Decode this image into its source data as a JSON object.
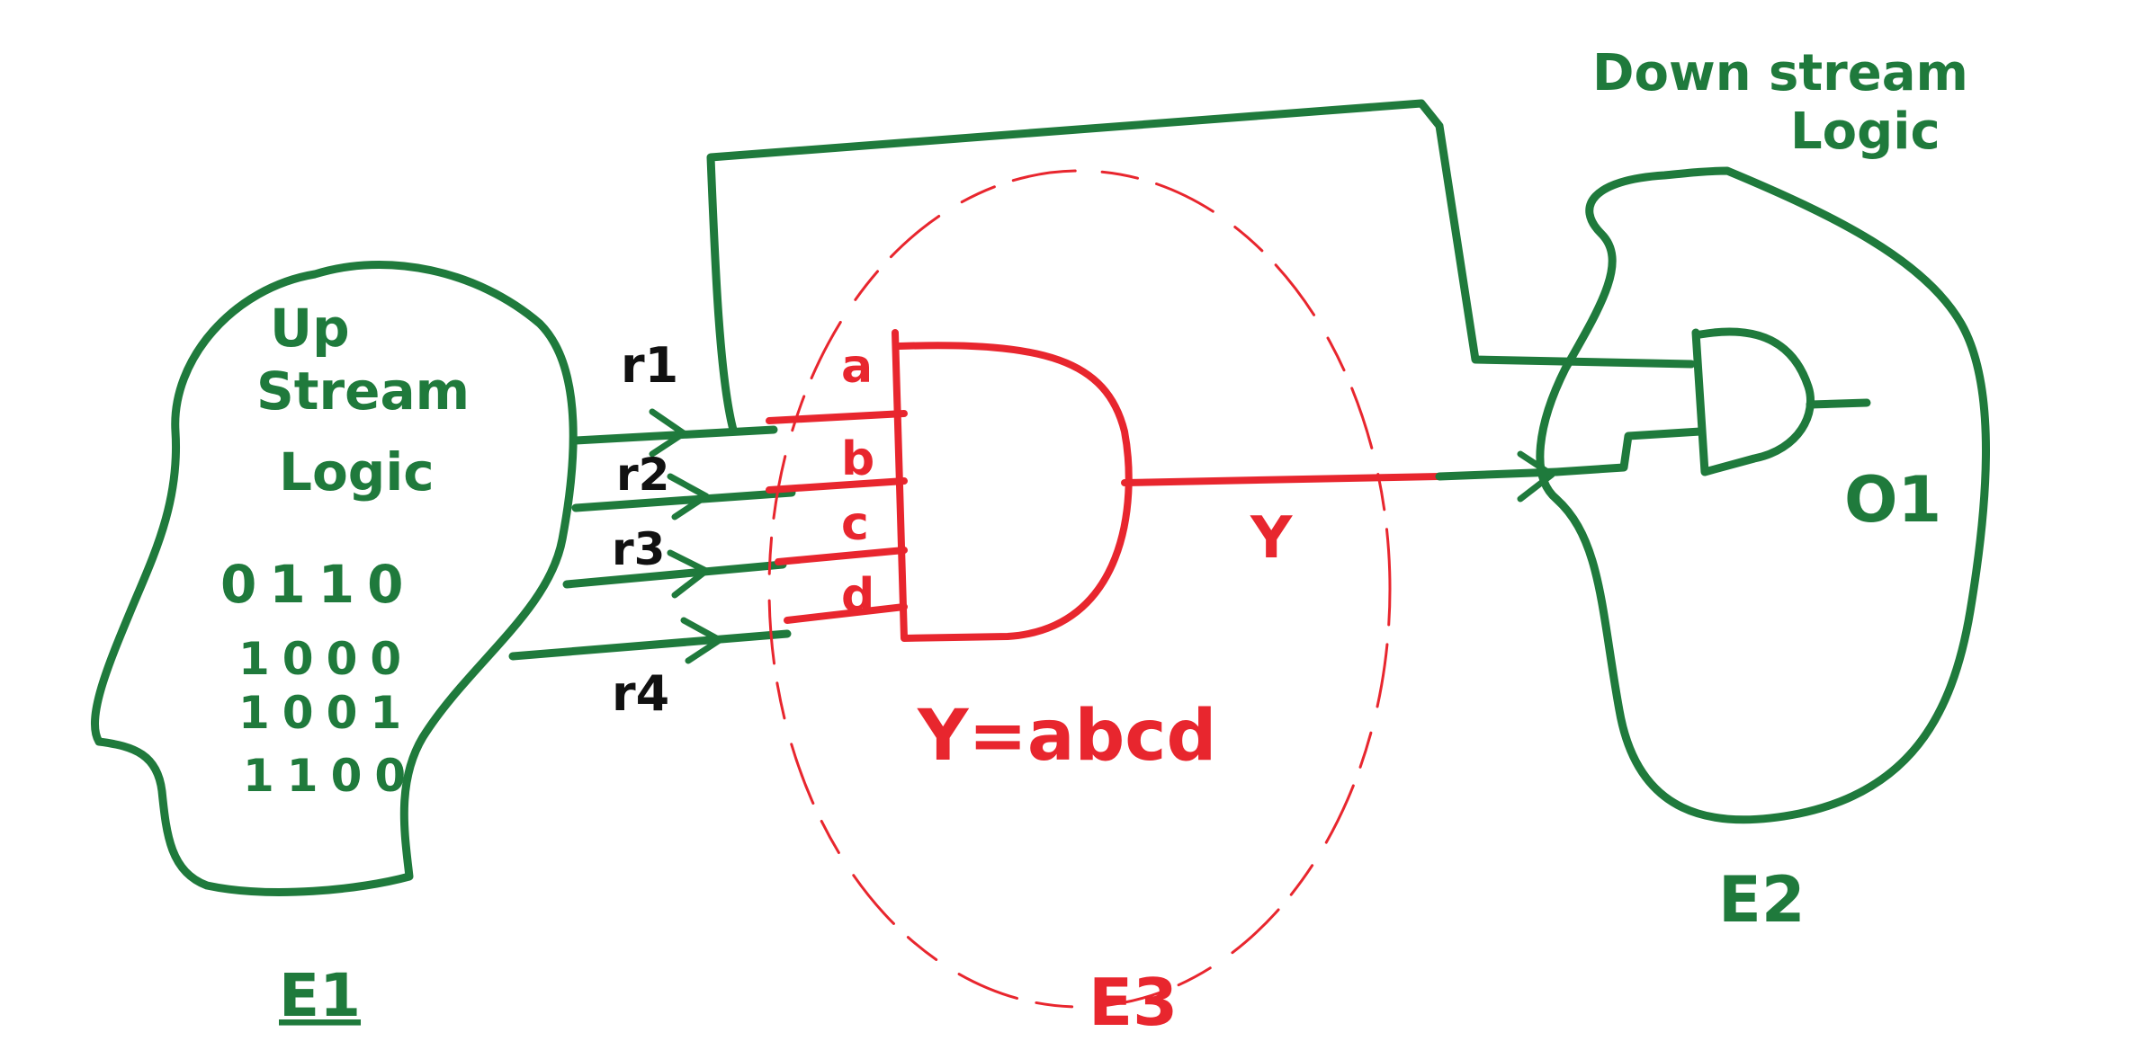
{
  "colors": {
    "green": "#1f7a3c",
    "red": "#e8262e",
    "black": "#111111"
  },
  "upstream": {
    "label_line1": "Up",
    "label_line2": "Stream",
    "label_line3": "Logic",
    "bits": [
      "0110",
      "1000",
      "1001",
      "1100"
    ],
    "entity": "E1"
  },
  "signals": {
    "r1": "r1",
    "r2": "r2",
    "r3": "r3",
    "r4": "r4"
  },
  "gate": {
    "inputs": {
      "a": "a",
      "b": "b",
      "c": "c",
      "d": "d"
    },
    "output": "Y",
    "equation": "Y=abcd",
    "entity": "E3"
  },
  "downstream": {
    "label_line1": "Down stream",
    "label_line2": "Logic",
    "output": "O1",
    "entity": "E2"
  }
}
